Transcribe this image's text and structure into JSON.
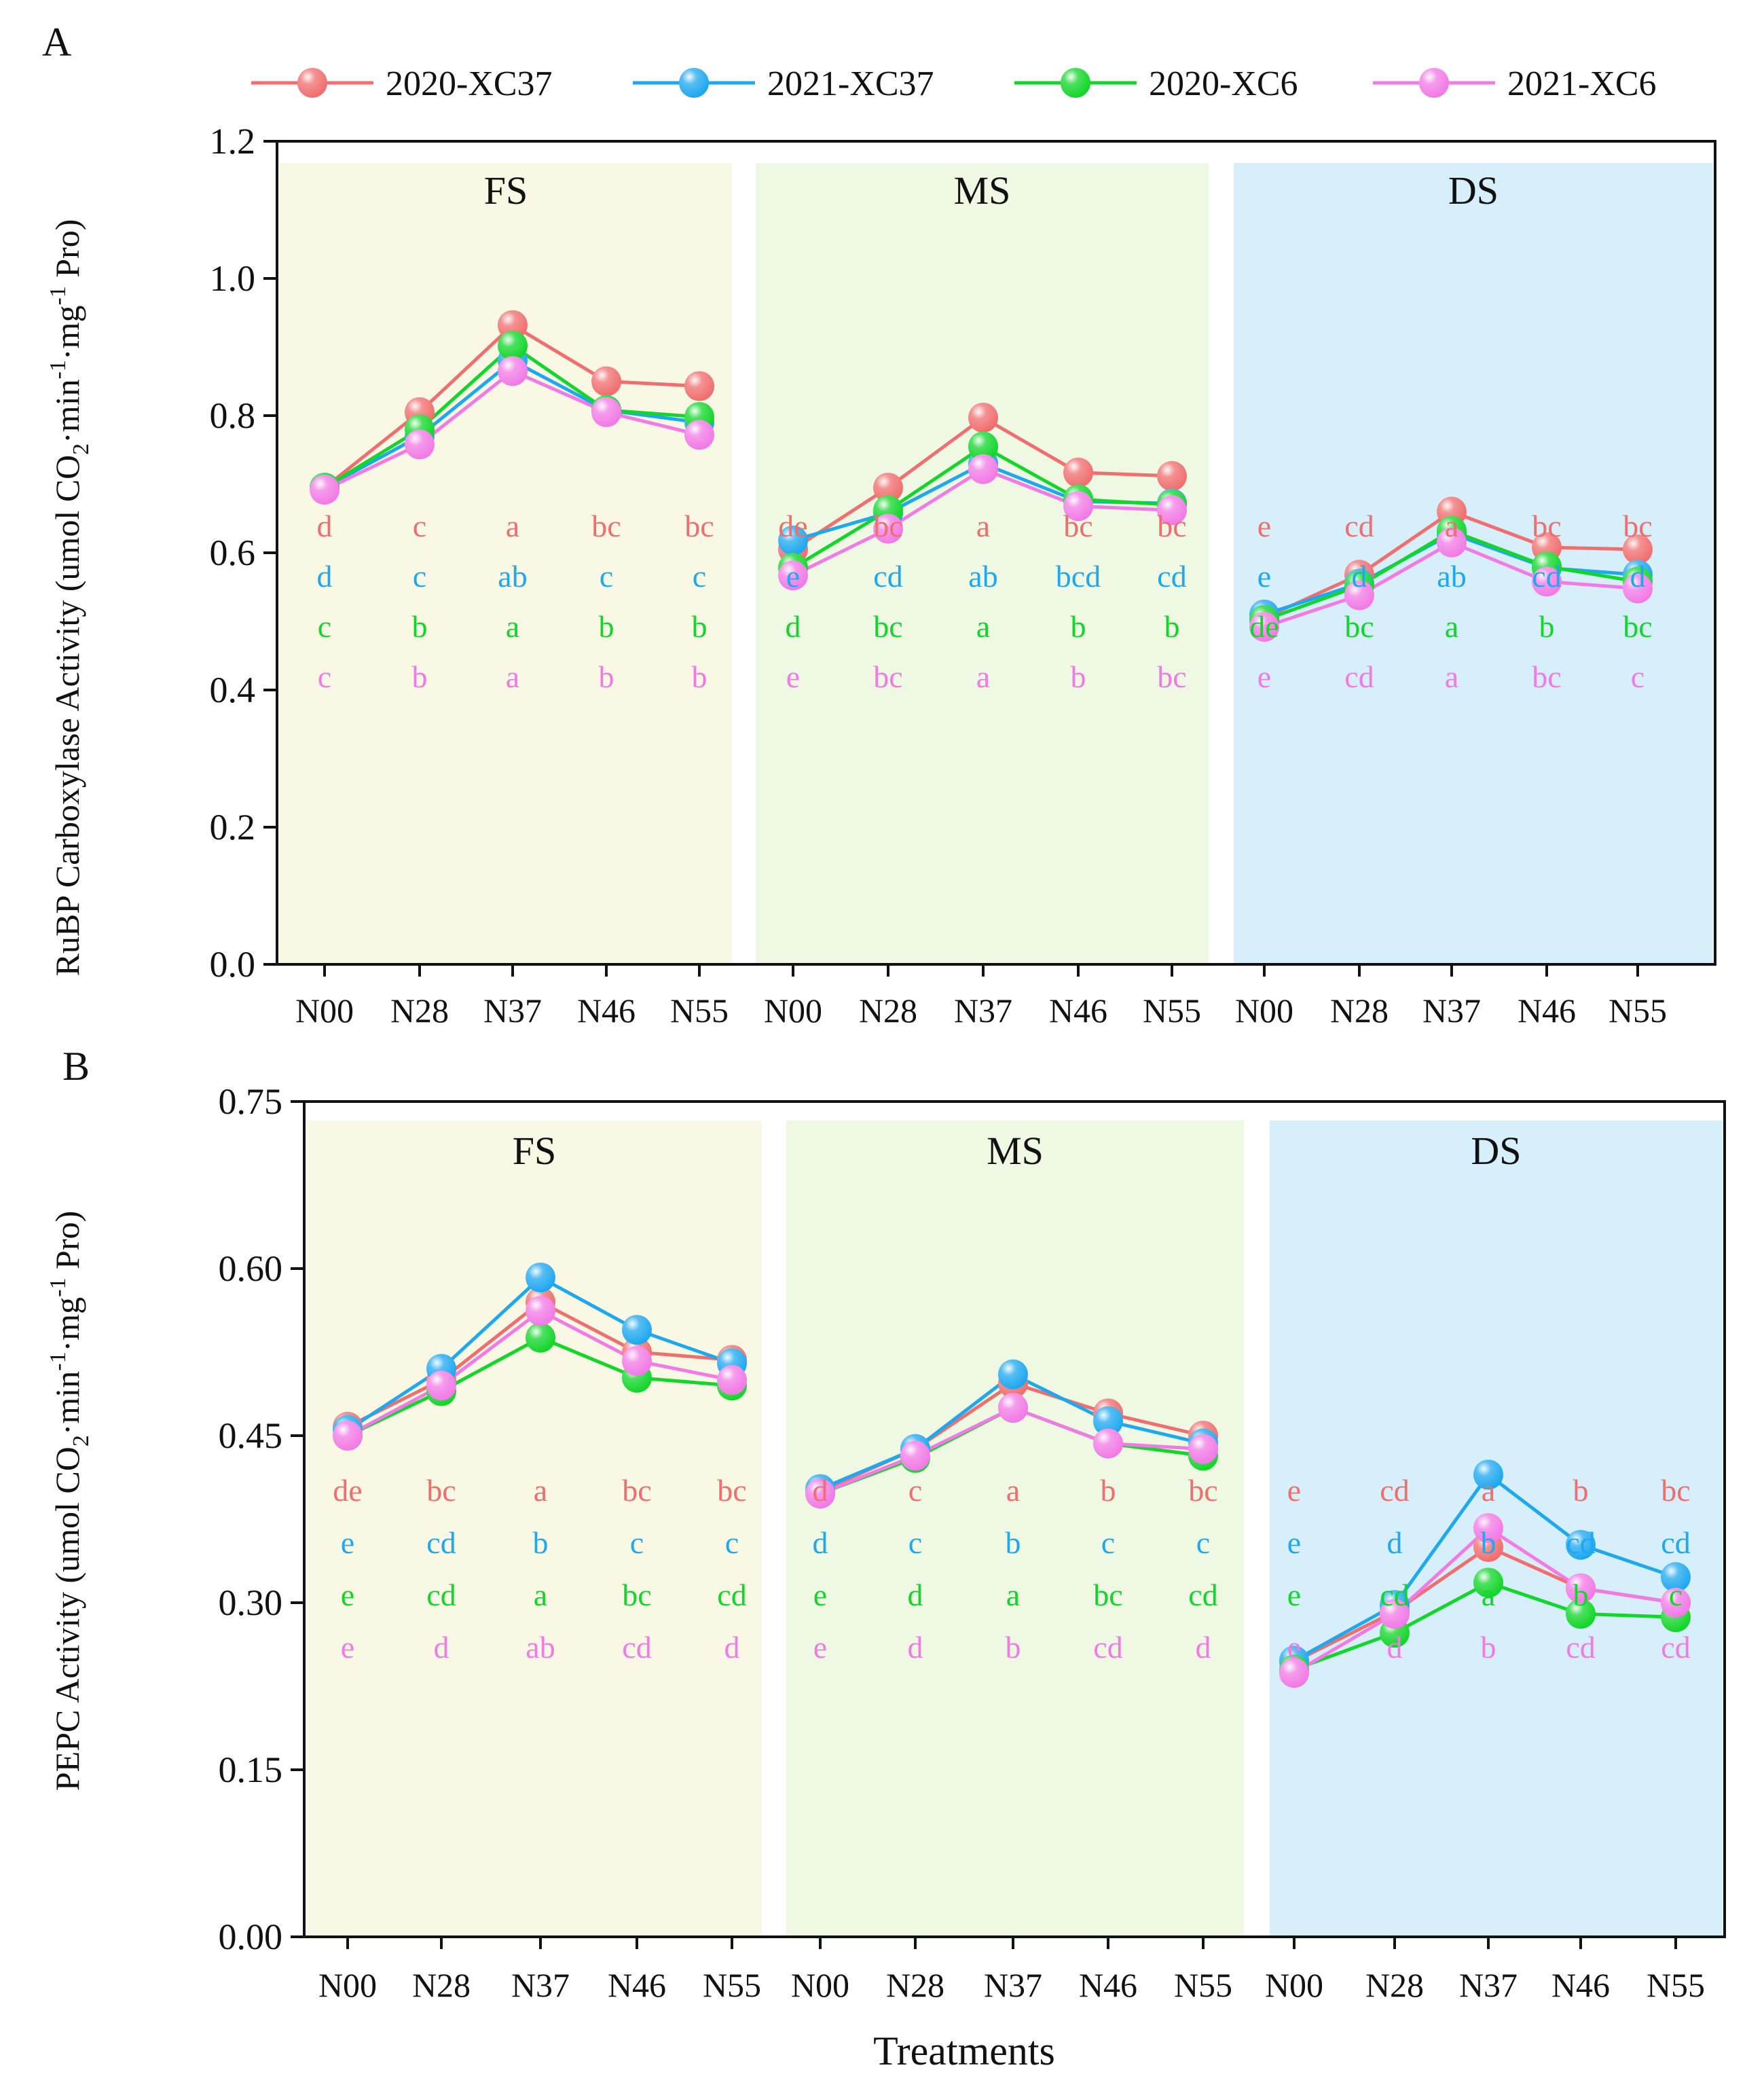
{
  "legend": {
    "entries": [
      {
        "label": "2020-XC37",
        "color": "#f06e6e"
      },
      {
        "label": "2021-XC37",
        "color": "#1ea8f0"
      },
      {
        "label": "2020-XC6",
        "color": "#12d62a"
      },
      {
        "label": "2021-XC6",
        "color": "#f27ae6"
      }
    ]
  },
  "stage_colors": {
    "FS": "#f9f8e4",
    "MS": "#eef8e2",
    "DS": "#d6effa"
  },
  "chart_data": [
    {
      "panel": "A",
      "type": "line",
      "ylabel": "RuBP Carboxylase Activity (umol CO2·min-1·mg-1 Pro)",
      "ylabel_parts": {
        "pre": "RuBP Carboxylase Activity (umol CO",
        "sub": "2",
        "mid1": "·min",
        "sup1": "-1",
        "mid2": "·mg",
        "sup2": "-1",
        "post": " Pro)"
      },
      "ylim": [
        0.0,
        1.2
      ],
      "yticks": [
        "0.0",
        "0.2",
        "0.4",
        "0.6",
        "0.8",
        "1.0",
        "1.2"
      ],
      "stages": [
        "FS",
        "MS",
        "DS"
      ],
      "categories": [
        "N00",
        "N28",
        "N37",
        "N46",
        "N55"
      ],
      "series": [
        {
          "name": "2020-XC37",
          "values": [
            [
              0.695,
              0.805,
              0.932,
              0.85,
              0.843
            ],
            [
              0.605,
              0.695,
              0.797,
              0.717,
              0.712
            ],
            [
              0.505,
              0.568,
              0.66,
              0.608,
              0.605
            ]
          ]
        },
        {
          "name": "2021-XC37",
          "values": [
            [
              0.695,
              0.77,
              0.88,
              0.808,
              0.79
            ],
            [
              0.618,
              0.658,
              0.73,
              0.675,
              0.672
            ],
            [
              0.51,
              0.555,
              0.628,
              0.578,
              0.568
            ]
          ]
        },
        {
          "name": "2020-XC6",
          "values": [
            [
              0.695,
              0.78,
              0.902,
              0.808,
              0.798
            ],
            [
              0.578,
              0.662,
              0.755,
              0.678,
              0.67
            ],
            [
              0.502,
              0.552,
              0.632,
              0.58,
              0.558
            ]
          ]
        },
        {
          "name": "2021-XC6",
          "values": [
            [
              0.692,
              0.758,
              0.865,
              0.805,
              0.772
            ],
            [
              0.567,
              0.635,
              0.722,
              0.668,
              0.662
            ],
            [
              0.492,
              0.538,
              0.615,
              0.558,
              0.548
            ]
          ]
        }
      ],
      "significance_letters": [
        [
          [
            "d",
            "d",
            "c",
            "c"
          ],
          [
            "c",
            "c",
            "b",
            "b"
          ],
          [
            "a",
            "ab",
            "a",
            "a"
          ],
          [
            "bc",
            "c",
            "b",
            "b"
          ],
          [
            "bc",
            "c",
            "b",
            "b"
          ]
        ],
        [
          [
            "de",
            "e",
            "d",
            "e"
          ],
          [
            "bc",
            "cd",
            "bc",
            "bc"
          ],
          [
            "a",
            "ab",
            "a",
            "a"
          ],
          [
            "bc",
            "bcd",
            "b",
            "b"
          ],
          [
            "bc",
            "cd",
            "b",
            "bc"
          ]
        ],
        [
          [
            "e",
            "e",
            "de",
            "e"
          ],
          [
            "cd",
            "d",
            "bc",
            "cd"
          ],
          [
            "a",
            "ab",
            "a",
            "a"
          ],
          [
            "bc",
            "cd",
            "b",
            "bc"
          ],
          [
            "bc",
            "d",
            "bc",
            "c"
          ]
        ]
      ]
    },
    {
      "panel": "B",
      "type": "line",
      "ylabel": "PEPC Activity (umol CO2·min-1·mg-1 Pro)",
      "ylabel_parts": {
        "pre": "PEPC Activity (umol CO",
        "sub": "2",
        "mid1": "·min",
        "sup1": "-1",
        "mid2": "·mg",
        "sup2": "-1",
        "post": " Pro)"
      },
      "xlabel": "Treatments",
      "ylim": [
        0.0,
        0.75
      ],
      "yticks": [
        "0.00",
        "0.15",
        "0.30",
        "0.45",
        "0.60",
        "0.75"
      ],
      "stages": [
        "FS",
        "MS",
        "DS"
      ],
      "categories": [
        "N00",
        "N28",
        "N37",
        "N46",
        "N55"
      ],
      "series": [
        {
          "name": "2020-XC37",
          "values": [
            [
              0.458,
              0.5,
              0.57,
              0.525,
              0.518
            ],
            [
              0.4,
              0.438,
              0.497,
              0.47,
              0.45
            ],
            [
              0.247,
              0.292,
              0.35,
              0.313,
              0.3
            ]
          ]
        },
        {
          "name": "2021-XC37",
          "values": [
            [
              0.455,
              0.51,
              0.592,
              0.545,
              0.515
            ],
            [
              0.402,
              0.438,
              0.505,
              0.463,
              0.443
            ],
            [
              0.248,
              0.298,
              0.415,
              0.352,
              0.323
            ]
          ]
        },
        {
          "name": "2020-XC6",
          "values": [
            [
              0.45,
              0.49,
              0.538,
              0.502,
              0.495
            ],
            [
              0.398,
              0.43,
              0.475,
              0.443,
              0.432
            ],
            [
              0.24,
              0.273,
              0.318,
              0.29,
              0.287
            ]
          ]
        },
        {
          "name": "2021-XC6",
          "values": [
            [
              0.45,
              0.495,
              0.562,
              0.517,
              0.5
            ],
            [
              0.398,
              0.432,
              0.475,
              0.443,
              0.438
            ],
            [
              0.237,
              0.29,
              0.367,
              0.313,
              0.3
            ]
          ]
        }
      ],
      "significance_letters": [
        [
          [
            "de",
            "e",
            "e",
            "e"
          ],
          [
            "bc",
            "cd",
            "cd",
            "d"
          ],
          [
            "a",
            "b",
            "a",
            "ab"
          ],
          [
            "bc",
            "c",
            "bc",
            "cd"
          ],
          [
            "bc",
            "c",
            "cd",
            "d"
          ]
        ],
        [
          [
            "d",
            "d",
            "e",
            "e"
          ],
          [
            "c",
            "c",
            "d",
            "d"
          ],
          [
            "a",
            "b",
            "a",
            "b"
          ],
          [
            "b",
            "c",
            "bc",
            "cd"
          ],
          [
            "bc",
            "c",
            "cd",
            "d"
          ]
        ],
        [
          [
            "e",
            "e",
            "e",
            "e"
          ],
          [
            "cd",
            "d",
            "cd",
            "d"
          ],
          [
            "a",
            "b",
            "a",
            "b"
          ],
          [
            "b",
            "cd",
            "b",
            "cd"
          ],
          [
            "bc",
            "cd",
            "c",
            "cd"
          ]
        ]
      ]
    }
  ]
}
